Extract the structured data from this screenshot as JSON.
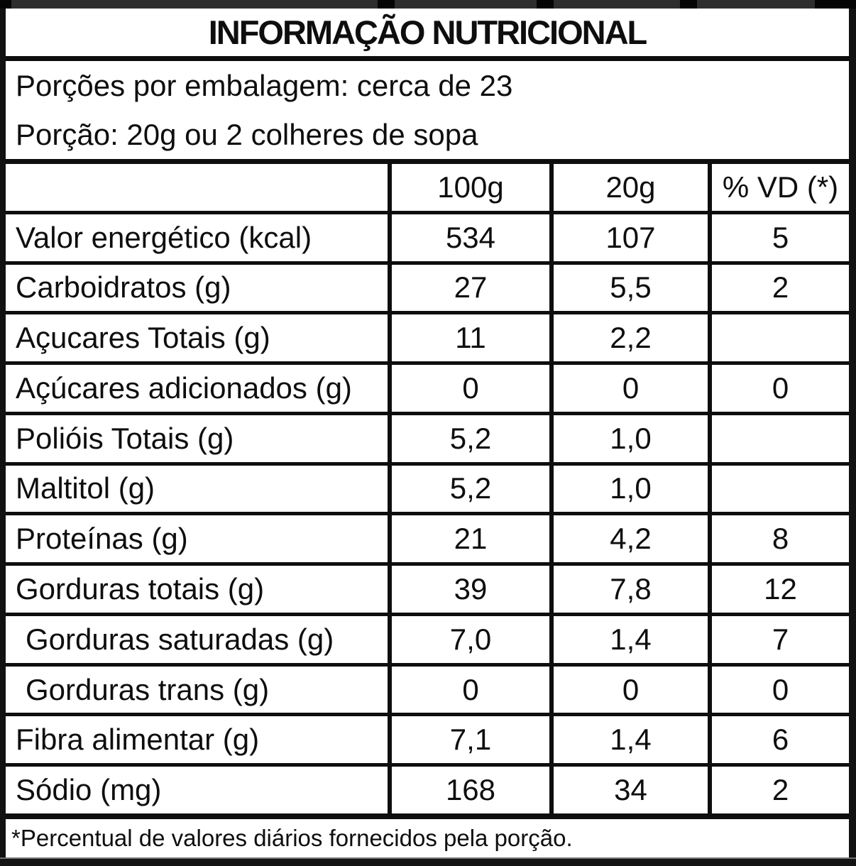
{
  "theme": {
    "ink": "#0e0e0e",
    "paper": "#ffffff",
    "frame": "#121212",
    "strip": "#2e2e2e"
  },
  "label": {
    "title": "INFORMAÇÃO NUTRICIONAL",
    "servings_per_package": "Porções por embalagem: cerca de 23",
    "serving_size": "Porção: 20g ou 2 colheres de sopa",
    "footnote": "*Percentual de valores diários fornecidos pela porção."
  },
  "table": {
    "headers": [
      "",
      "100g",
      "20g",
      "% VD (*)"
    ],
    "rows": [
      {
        "label": "Valor energético (kcal)",
        "indent": false,
        "per100g": "534",
        "per20g": "107",
        "vd": "5"
      },
      {
        "label": "Carboidratos (g)",
        "indent": false,
        "per100g": "27",
        "per20g": "5,5",
        "vd": "2"
      },
      {
        "label": "Açucares Totais (g)",
        "indent": false,
        "per100g": "11",
        "per20g": "2,2",
        "vd": ""
      },
      {
        "label": "Açúcares adicionados (g)",
        "indent": false,
        "per100g": "0",
        "per20g": "0",
        "vd": "0"
      },
      {
        "label": "Polióis Totais (g)",
        "indent": false,
        "per100g": "5,2",
        "per20g": "1,0",
        "vd": ""
      },
      {
        "label": "Maltitol (g)",
        "indent": false,
        "per100g": "5,2",
        "per20g": "1,0",
        "vd": ""
      },
      {
        "label": "Proteínas (g)",
        "indent": false,
        "per100g": "21",
        "per20g": "4,2",
        "vd": "8"
      },
      {
        "label": "Gorduras totais (g)",
        "indent": false,
        "per100g": "39",
        "per20g": "7,8",
        "vd": "12"
      },
      {
        "label": "Gorduras saturadas (g)",
        "indent": true,
        "per100g": "7,0",
        "per20g": "1,4",
        "vd": "7"
      },
      {
        "label": "Gorduras trans (g)",
        "indent": true,
        "per100g": "0",
        "per20g": "0",
        "vd": "0"
      },
      {
        "label": "Fibra alimentar (g)",
        "indent": false,
        "per100g": "7,1",
        "per20g": "1,4",
        "vd": "6"
      },
      {
        "label": "Sódio (mg)",
        "indent": false,
        "per100g": "168",
        "per20g": "34",
        "vd": "2"
      }
    ]
  }
}
